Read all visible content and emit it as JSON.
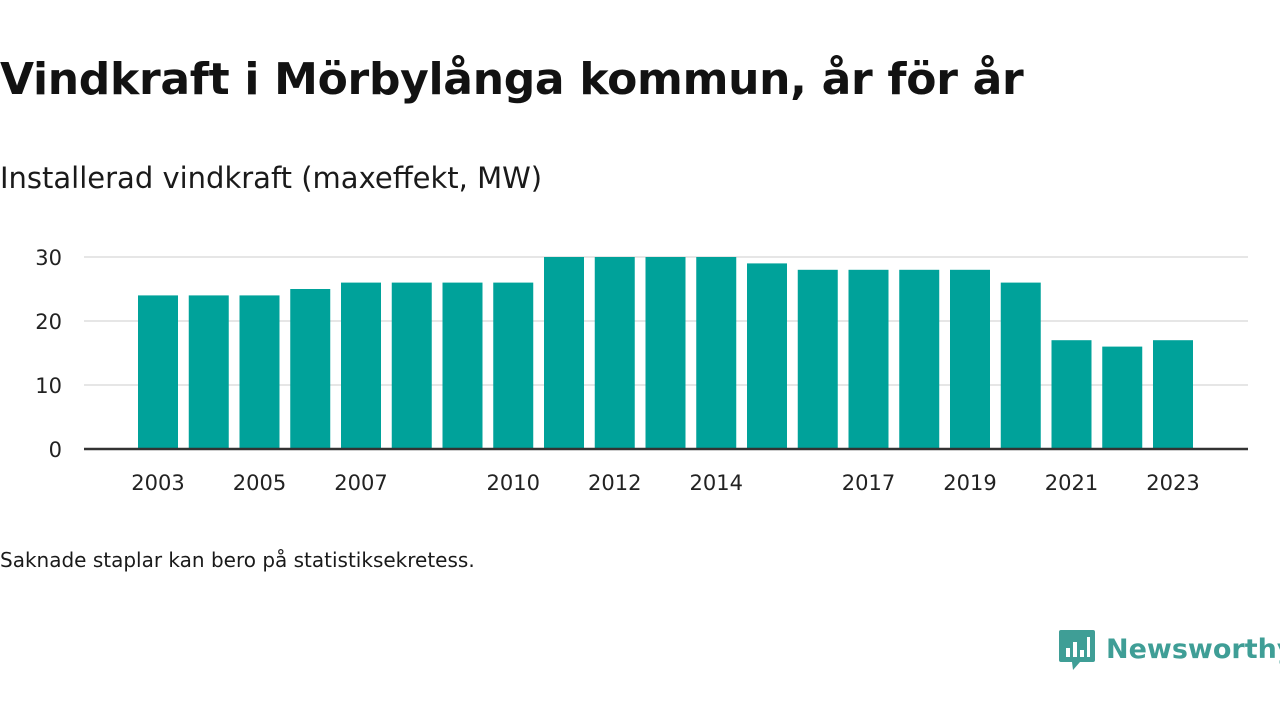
{
  "title": "Vindkraft i Mörbylånga kommun, år för år",
  "subtitle": "Installerad vindkraft (maxeffekt, MW)",
  "note": "Saknade staplar kan bero på statistiksekretess.",
  "brand": {
    "name": "Newsworthy",
    "icon": "newsworthy-logo-icon"
  },
  "colors": {
    "bar": "#00a29a",
    "brand": "#3f9e96",
    "grid": "#dddddd",
    "axis": "#333333",
    "text": "#222222"
  },
  "chart_data": {
    "type": "bar",
    "categories": [
      "2003",
      "2004",
      "2005",
      "2006",
      "2007",
      "2008",
      "2009",
      "2010",
      "2011",
      "2012",
      "2013",
      "2014",
      "2015",
      "2016",
      "2017",
      "2018",
      "2019",
      "2020",
      "2021",
      "2022",
      "2023"
    ],
    "values": [
      24,
      24,
      24,
      25,
      26,
      26,
      26,
      26,
      30,
      30,
      30,
      30,
      29,
      28,
      28,
      28,
      28,
      26,
      17,
      16,
      17
    ],
    "x_tick_labels": [
      "2003",
      "2005",
      "2007",
      "2010",
      "2012",
      "2014",
      "2017",
      "2019",
      "2021",
      "2023"
    ],
    "y_ticks": [
      0,
      10,
      20,
      30
    ],
    "ylim": [
      0,
      30
    ],
    "grid": true,
    "legend": false,
    "title": "Vindkraft i Mörbylånga kommun, år för år",
    "ylabel": "Installerad vindkraft (maxeffekt, MW)",
    "xlabel": ""
  }
}
